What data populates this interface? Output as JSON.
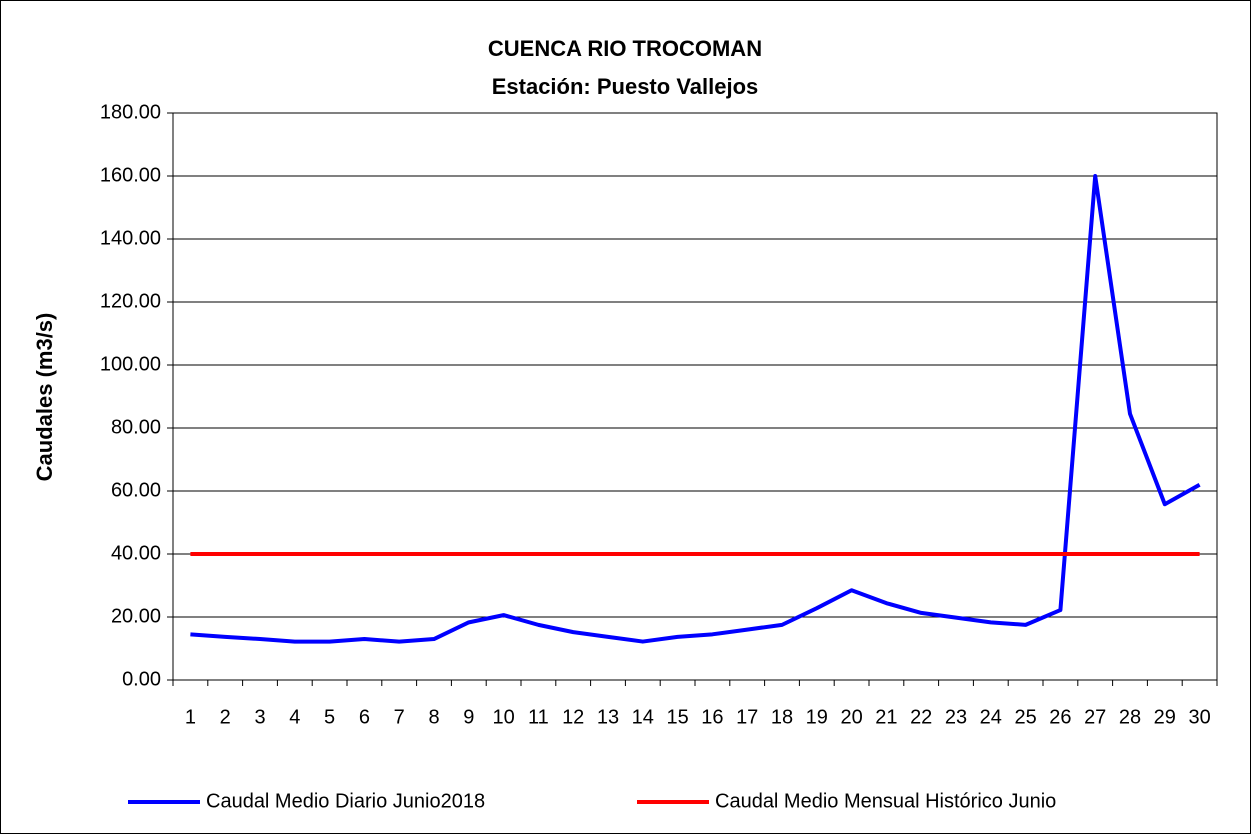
{
  "chart_data": {
    "type": "line",
    "title": "CUENCA RIO TROCOMAN",
    "subtitle": "Estación: Puesto Vallejos",
    "y_label": "Caudales (m3/s)",
    "categories": [
      "1",
      "2",
      "3",
      "4",
      "5",
      "6",
      "7",
      "8",
      "9",
      "10",
      "11",
      "12",
      "13",
      "14",
      "15",
      "16",
      "17",
      "18",
      "19",
      "20",
      "21",
      "22",
      "23",
      "24",
      "25",
      "26",
      "27",
      "28",
      "29",
      "30"
    ],
    "series": [
      {
        "name": "Caudal Medio Diario Junio2018",
        "color": "#0000ff",
        "values": [
          14.5,
          13.7,
          13,
          12.2,
          12.2,
          13,
          12.2,
          13,
          18.3,
          20.6,
          17.5,
          15.2,
          13.7,
          12.2,
          13.7,
          14.5,
          16,
          17.5,
          22.8,
          28.5,
          24.4,
          21.3,
          19.8,
          18.3,
          17.5,
          22.2,
          160,
          84.5,
          55.8,
          62
        ]
      },
      {
        "name": "Caudal Medio Mensual Histórico Junio",
        "color": "#ff0000",
        "values": [
          40,
          40,
          40,
          40,
          40,
          40,
          40,
          40,
          40,
          40,
          40,
          40,
          40,
          40,
          40,
          40,
          40,
          40,
          40,
          40,
          40,
          40,
          40,
          40,
          40,
          40,
          40,
          40,
          40,
          40
        ]
      }
    ],
    "ylim": [
      0,
      180
    ],
    "yticks": [
      {
        "value": 0,
        "label": "0.00"
      },
      {
        "value": 20,
        "label": "20.00"
      },
      {
        "value": 40,
        "label": "40.00"
      },
      {
        "value": 60,
        "label": "60.00"
      },
      {
        "value": 80,
        "label": "80.00"
      },
      {
        "value": 100,
        "label": "100.00"
      },
      {
        "value": 120,
        "label": "120.00"
      },
      {
        "value": 140,
        "label": "140.00"
      },
      {
        "value": 160,
        "label": "160.00"
      },
      {
        "value": 180,
        "label": "180.00"
      }
    ],
    "grid": true,
    "legend": "bottom"
  }
}
